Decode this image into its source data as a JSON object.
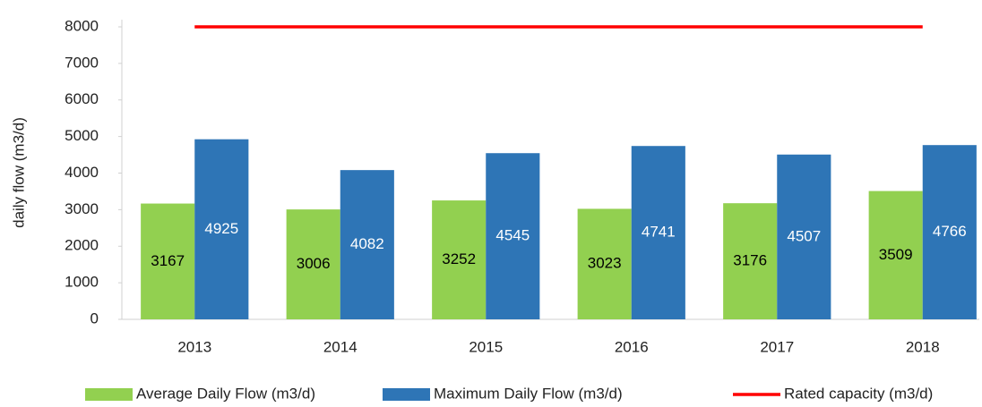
{
  "chart_data": {
    "type": "bar",
    "y_label": "daily flow (m3/d)",
    "categories": [
      "2013",
      "2014",
      "2015",
      "2016",
      "2017",
      "2018"
    ],
    "series": [
      {
        "name": "Average Daily Flow (m3/d)",
        "type": "bar",
        "color": "#92d050",
        "label_color": "#000000",
        "values": [
          3167,
          3006,
          3252,
          3023,
          3176,
          3509
        ]
      },
      {
        "name": "Maximum Daily Flow (m3/d)",
        "type": "bar",
        "color": "#2e75b6",
        "label_color": "#ffffff",
        "values": [
          4925,
          4082,
          4545,
          4741,
          4507,
          4766
        ]
      },
      {
        "name": "Rated capacity (m3/d)",
        "type": "line",
        "color": "#ff0000",
        "values": [
          8000,
          8000,
          8000,
          8000,
          8000,
          8000
        ]
      }
    ],
    "ylim": [
      0,
      8000
    ],
    "yticks": [
      0,
      1000,
      2000,
      3000,
      4000,
      5000,
      6000,
      7000,
      8000
    ],
    "grid": false,
    "legend": "bottom"
  }
}
